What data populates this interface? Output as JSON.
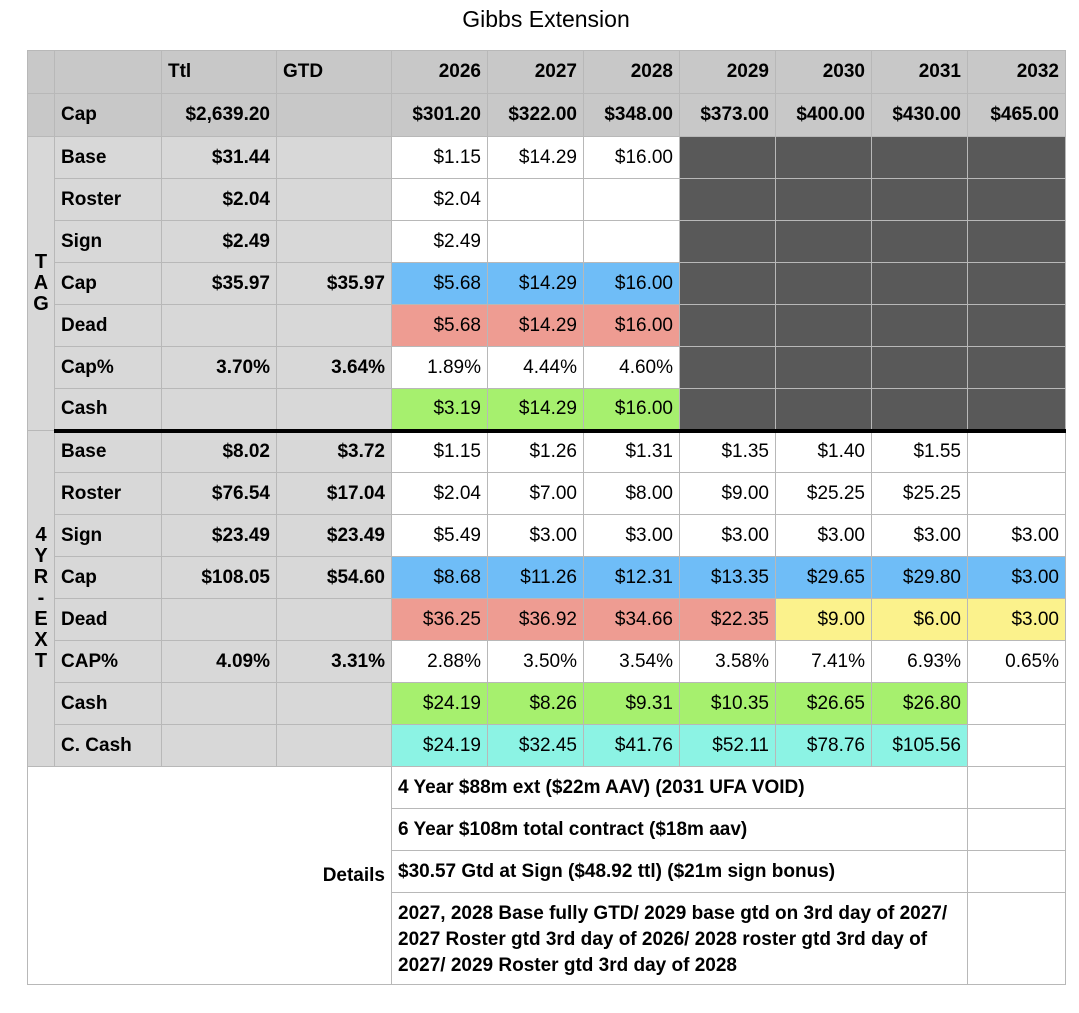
{
  "title": "Gibbs Extension",
  "header": {
    "blank1": "",
    "blank2": "",
    "ttl": "Ttl",
    "gtd": "GTD",
    "years": [
      "2026",
      "2027",
      "2028",
      "2029",
      "2030",
      "2031",
      "2032"
    ]
  },
  "cap_row": {
    "label": "Cap",
    "ttl": "$2,639.20",
    "gtd": "",
    "values": [
      "$301.20",
      "$322.00",
      "$348.00",
      "$373.00",
      "$400.00",
      "$430.00",
      "$465.00"
    ]
  },
  "tag": {
    "section_label": [
      "T",
      "A",
      "G"
    ],
    "rows": [
      {
        "label": "Base",
        "ttl": "$31.44",
        "gtd": "",
        "values": [
          "$1.15",
          "$14.29",
          "$16.00",
          "",
          "",
          "",
          ""
        ]
      },
      {
        "label": "Roster",
        "ttl": "$2.04",
        "gtd": "",
        "values": [
          "$2.04",
          "",
          "",
          "",
          "",
          "",
          ""
        ]
      },
      {
        "label": "Sign",
        "ttl": "$2.49",
        "gtd": "",
        "values": [
          "$2.49",
          "",
          "",
          "",
          "",
          "",
          ""
        ]
      },
      {
        "label": "Cap",
        "ttl": "$35.97",
        "gtd": "$35.97",
        "values": [
          "$5.68",
          "$14.29",
          "$16.00",
          "",
          "",
          "",
          ""
        ]
      },
      {
        "label": "Dead",
        "ttl": "",
        "gtd": "",
        "values": [
          "$5.68",
          "$14.29",
          "$16.00",
          "",
          "",
          "",
          ""
        ]
      },
      {
        "label": "Cap%",
        "ttl": "3.70%",
        "gtd": "3.64%",
        "values": [
          "1.89%",
          "4.44%",
          "4.60%",
          "",
          "",
          "",
          ""
        ]
      },
      {
        "label": "Cash",
        "ttl": "",
        "gtd": "",
        "values": [
          "$3.19",
          "$14.29",
          "$16.00",
          "",
          "",
          "",
          ""
        ]
      }
    ]
  },
  "ext": {
    "section_label": [
      "4",
      "Y",
      "R",
      "-",
      "E",
      "X",
      "T"
    ],
    "rows": [
      {
        "label": "Base",
        "ttl": "$8.02",
        "gtd": "$3.72",
        "values": [
          "$1.15",
          "$1.26",
          "$1.31",
          "$1.35",
          "$1.40",
          "$1.55",
          ""
        ]
      },
      {
        "label": "Roster",
        "ttl": "$76.54",
        "gtd": "$17.04",
        "values": [
          "$2.04",
          "$7.00",
          "$8.00",
          "$9.00",
          "$25.25",
          "$25.25",
          ""
        ]
      },
      {
        "label": "Sign",
        "ttl": "$23.49",
        "gtd": "$23.49",
        "values": [
          "$5.49",
          "$3.00",
          "$3.00",
          "$3.00",
          "$3.00",
          "$3.00",
          "$3.00"
        ]
      },
      {
        "label": "Cap",
        "ttl": "$108.05",
        "gtd": "$54.60",
        "values": [
          "$8.68",
          "$11.26",
          "$12.31",
          "$13.35",
          "$29.65",
          "$29.80",
          "$3.00"
        ]
      },
      {
        "label": "Dead",
        "ttl": "",
        "gtd": "",
        "values": [
          "$36.25",
          "$36.92",
          "$34.66",
          "$22.35",
          "$9.00",
          "$6.00",
          "$3.00"
        ]
      },
      {
        "label": "CAP%",
        "ttl": "4.09%",
        "gtd": "3.31%",
        "values": [
          "2.88%",
          "3.50%",
          "3.54%",
          "3.58%",
          "7.41%",
          "6.93%",
          "0.65%"
        ]
      },
      {
        "label": "Cash",
        "ttl": "",
        "gtd": "",
        "values": [
          "$24.19",
          "$8.26",
          "$9.31",
          "$10.35",
          "$26.65",
          "$26.80",
          ""
        ]
      },
      {
        "label": "C. Cash",
        "ttl": "",
        "gtd": "",
        "values": [
          "$24.19",
          "$32.45",
          "$41.76",
          "$52.11",
          "$78.76",
          "$105.56",
          ""
        ]
      }
    ]
  },
  "details": {
    "label": "Details",
    "lines": [
      "4 Year $88m ext ($22m AAV) (2031 UFA VOID)",
      "6 Year $108m total contract ($18m aav)",
      "$30.57 Gtd at Sign ($48.92 ttl) ($21m sign bonus)",
      "2027, 2028 Base fully GTD/ 2029 base gtd on 3rd day of 2027/ 2027 Roster gtd 3rd day of 2026/ 2028 roster gtd 3rd day of 2027/ 2029 Roster gtd 3rd day of 2028"
    ]
  },
  "colors": {
    "header_gray": "#c8c8c8",
    "label_gray": "#d8d8d8",
    "cap_blue": "#6fbdf7",
    "dead_red": "#ee9c92",
    "cash_green": "#a6f06e",
    "cumulative_cyan": "#8cf3e4",
    "dead_yellow": "#fbf28c",
    "void_dark": "#595959"
  }
}
